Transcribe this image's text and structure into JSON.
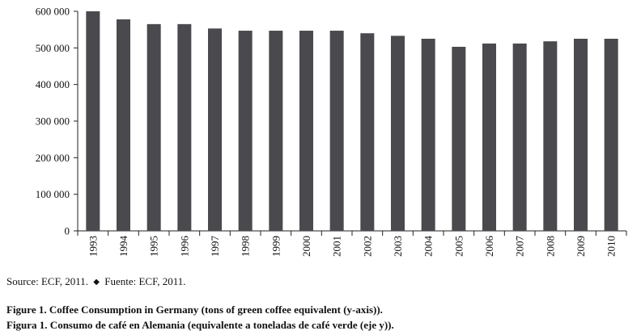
{
  "chart_data": {
    "type": "bar",
    "title": "",
    "xlabel": "",
    "ylabel": "",
    "categories": [
      "1993",
      "1994",
      "1995",
      "1996",
      "1997",
      "1998",
      "1999",
      "2000",
      "2001",
      "2002",
      "2003",
      "2004",
      "2005",
      "2006",
      "2007",
      "2008",
      "2009",
      "2010"
    ],
    "values": [
      600000,
      578000,
      565000,
      565000,
      553000,
      547000,
      547000,
      547000,
      547000,
      540000,
      533000,
      525000,
      503000,
      512000,
      512000,
      518000,
      525000,
      525000
    ],
    "ylim": [
      0,
      600000
    ],
    "yticks": [
      0,
      100000,
      200000,
      300000,
      400000,
      500000,
      600000
    ],
    "ytick_labels": [
      "0",
      "100 000",
      "200 000",
      "300 000",
      "400 000",
      "500 000",
      "600 000"
    ],
    "grid": false,
    "legend": "none",
    "bar_color": "#4a4a4e"
  },
  "source": {
    "en": "Source: ECF, 2011.",
    "separator": "◆",
    "es": "Fuente: ECF, 2011."
  },
  "caption": {
    "en": "Figure 1. Coffee Consumption in Germany (tons of green coffee equivalent (y-axis)).",
    "es": "Figura 1. Consumo de café en Alemania (equivalente a toneladas de café verde (eje y))."
  }
}
